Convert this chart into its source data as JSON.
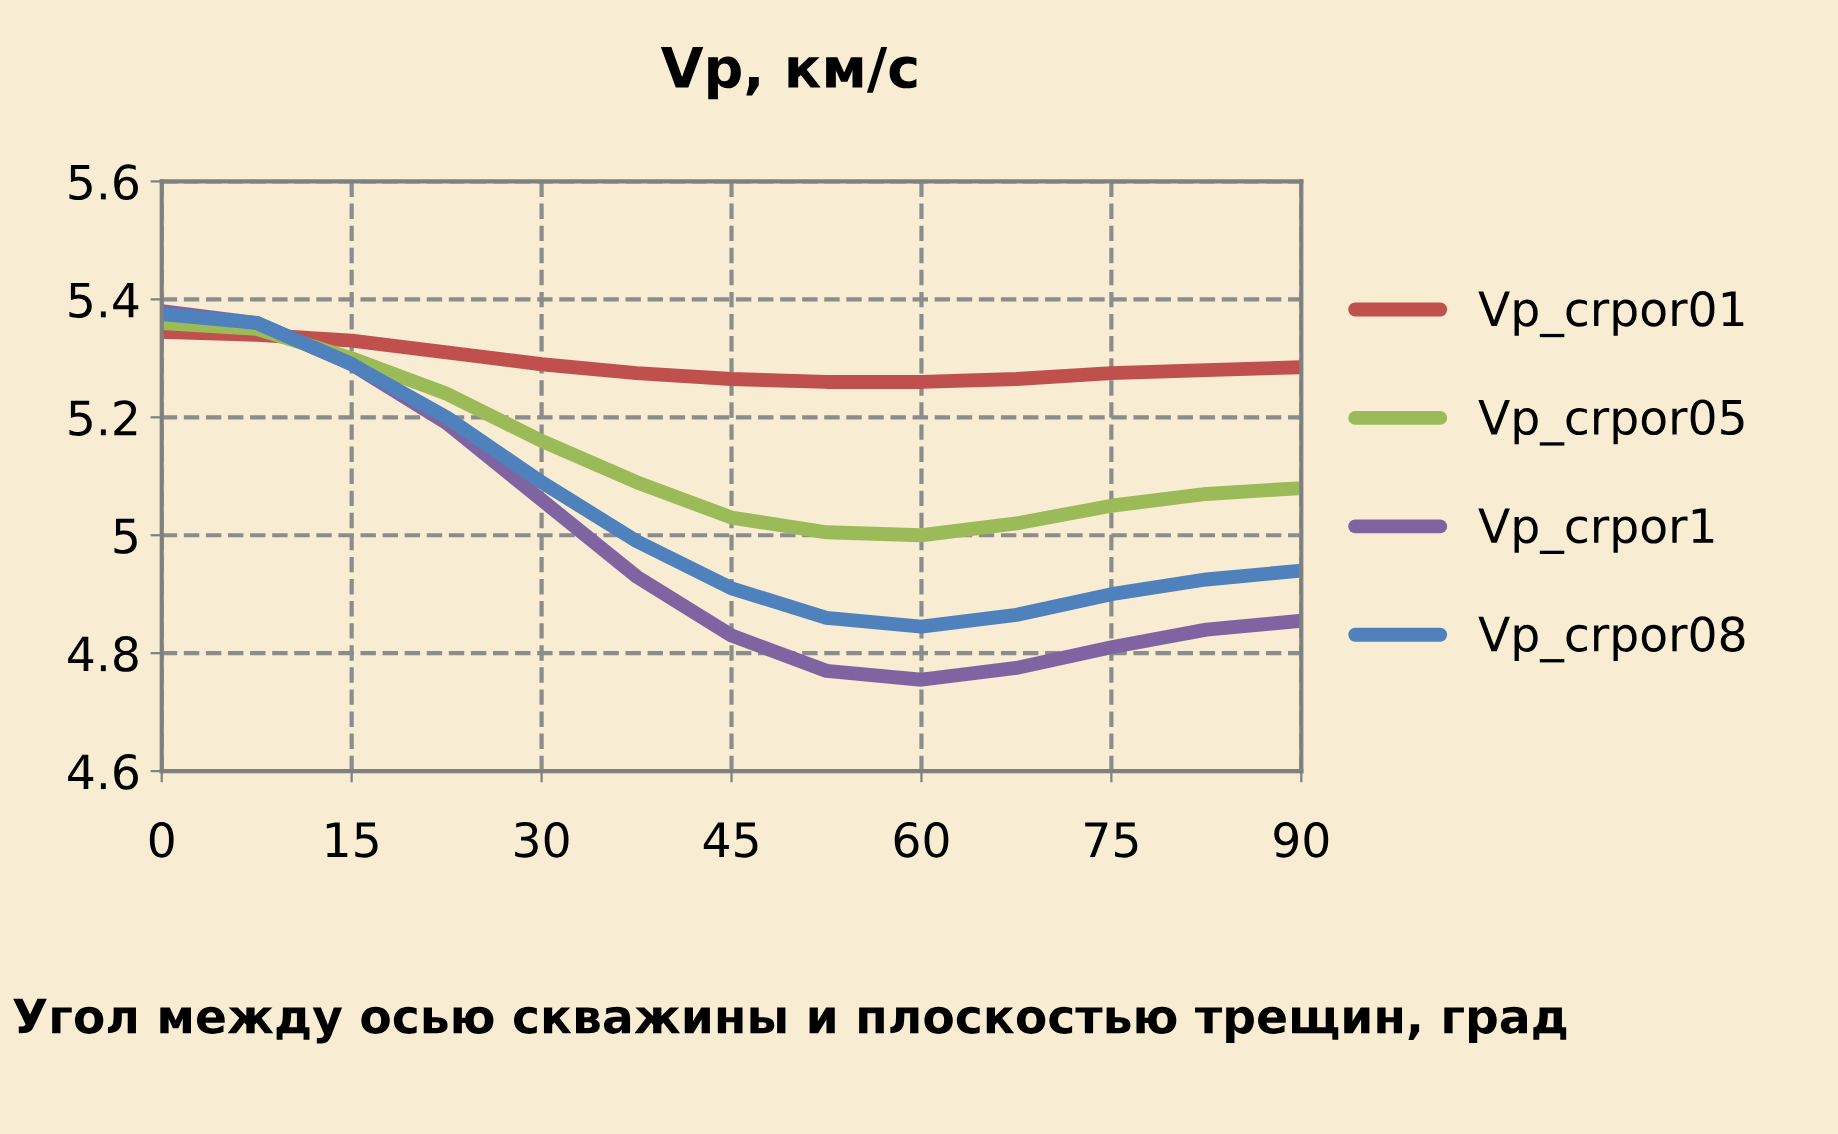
{
  "chart_data": {
    "type": "line",
    "title": "Vp, км/с",
    "xlabel": "Угол между осью скважины и плоскостью трещин, град",
    "x": [
      0,
      7.5,
      15,
      22.5,
      30,
      37.5,
      45,
      52.5,
      60,
      67.5,
      75,
      82.5,
      90
    ],
    "series": [
      {
        "name": "Vp_crpor01",
        "color": "#c0504d",
        "values": [
          5.345,
          5.34,
          5.33,
          5.31,
          5.29,
          5.275,
          5.265,
          5.26,
          5.26,
          5.265,
          5.275,
          5.28,
          5.285
        ]
      },
      {
        "name": "Vp_crpor05",
        "color": "#9bbb59",
        "values": [
          5.36,
          5.35,
          5.3,
          5.24,
          5.16,
          5.09,
          5.03,
          5.005,
          5.0,
          5.02,
          5.05,
          5.07,
          5.08
        ]
      },
      {
        "name": "Vp_crpor1",
        "color": "#8064a2",
        "values": [
          5.38,
          5.36,
          5.29,
          5.19,
          5.06,
          4.93,
          4.83,
          4.77,
          4.755,
          4.775,
          4.81,
          4.84,
          4.855
        ]
      },
      {
        "name": "Vp_crpor08",
        "color": "#4f81bd",
        "values": [
          5.375,
          5.36,
          5.29,
          5.2,
          5.09,
          4.99,
          4.91,
          4.86,
          4.845,
          4.865,
          4.9,
          4.925,
          4.94
        ]
      }
    ],
    "xlim": [
      0,
      90
    ],
    "xticks": [
      0,
      15,
      30,
      45,
      60,
      75,
      90
    ],
    "ylim": [
      4.6,
      5.6
    ],
    "yticks": [
      4.6,
      4.8,
      {
        "value": 5.0,
        "label": "5"
      },
      5.2,
      5.4,
      5.6
    ],
    "grid": true,
    "legend": "right",
    "marker": "none",
    "line_style": "solid"
  }
}
